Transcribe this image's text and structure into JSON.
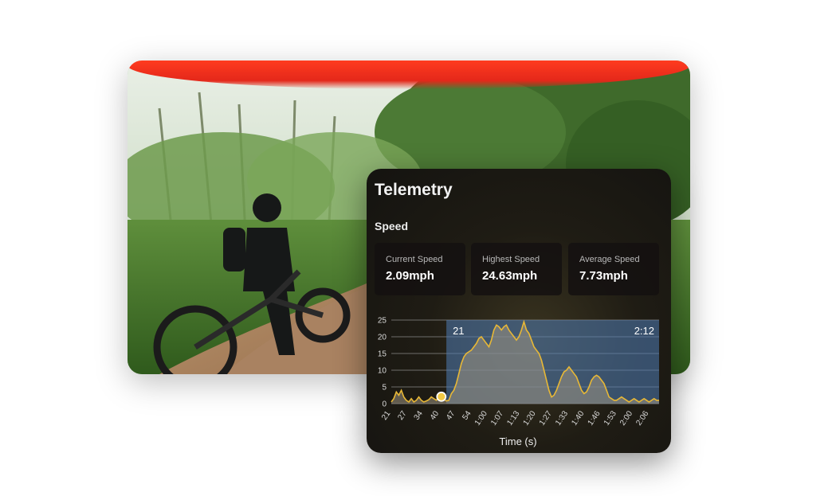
{
  "panel": {
    "title": "Telemetry",
    "section": "Speed",
    "stats": [
      {
        "label": "Current Speed",
        "value": "2.09mph"
      },
      {
        "label": "Highest Speed",
        "value": "24.63mph"
      },
      {
        "label": "Average Speed",
        "value": "7.73mph"
      }
    ]
  },
  "colors": {
    "line": "#e8b836",
    "selection": "#4f7bb5",
    "marker": "#f1c945"
  },
  "chart_data": {
    "type": "area",
    "xlabel": "Time (s)",
    "ylabel": "",
    "x_ticks": [
      "21",
      "27",
      "34",
      "40",
      "47",
      "54",
      "1:00",
      "1:07",
      "1:13",
      "1:20",
      "1:27",
      "1:33",
      "1:40",
      "1:46",
      "1:53",
      "2:00",
      "2:06"
    ],
    "y_ticks": [
      0,
      5,
      10,
      15,
      20,
      25
    ],
    "ylim": [
      0,
      25
    ],
    "xlim": [
      21,
      128
    ],
    "selection": {
      "start_label": "21",
      "end_label": "2:12",
      "x_start": 43,
      "x_end": 128
    },
    "current_marker": {
      "x": 41,
      "y": 2.09
    },
    "series": [
      {
        "x": [
          21,
          22,
          23,
          24,
          25,
          26,
          27,
          28,
          29,
          30,
          31,
          32,
          33,
          34,
          35,
          36,
          37,
          38,
          39,
          40,
          41,
          42,
          43,
          44,
          45,
          46,
          47,
          48,
          49,
          50,
          51,
          52,
          53,
          54,
          55,
          56,
          57,
          58,
          59,
          60,
          61,
          62,
          63,
          64,
          65,
          66,
          67,
          68,
          69,
          70,
          71,
          72,
          73,
          74,
          75,
          76,
          77,
          78,
          79,
          80,
          81,
          82,
          83,
          84,
          85,
          86,
          87,
          88,
          89,
          90,
          91,
          92,
          93,
          94,
          95,
          96,
          97,
          98,
          99,
          100,
          101,
          102,
          103,
          104,
          105,
          106,
          107,
          108,
          109,
          110,
          111,
          112,
          113,
          114,
          115,
          116,
          117,
          118,
          119,
          120,
          121,
          122,
          123,
          124,
          125,
          126,
          127,
          128
        ],
        "values": [
          0.5,
          1.5,
          3.5,
          2.5,
          4,
          2,
          1,
          0.5,
          1.5,
          0.5,
          1,
          2,
          1,
          0.5,
          0.8,
          1.2,
          2,
          1.5,
          1,
          2.2,
          2.1,
          1.5,
          0.8,
          1,
          3,
          4,
          6,
          9,
          12,
          14,
          15,
          15.5,
          16,
          17,
          18,
          19.5,
          20,
          19,
          18,
          17,
          19,
          22,
          23.5,
          23,
          22,
          23,
          23.5,
          22,
          21,
          20,
          19,
          20,
          22,
          24.5,
          22,
          21,
          19,
          17,
          16,
          15,
          13,
          10,
          7,
          4,
          2,
          2.5,
          4,
          6,
          8,
          9.5,
          10,
          11,
          10,
          9,
          8,
          6,
          4,
          3,
          3.5,
          5,
          7,
          8,
          8.5,
          8,
          7,
          6,
          4,
          2,
          1.5,
          1,
          1,
          1.5,
          2,
          1.5,
          1,
          0.5,
          1,
          1.5,
          1,
          0.5,
          1,
          1.5,
          1,
          0.5,
          1,
          1.5,
          1,
          1
        ]
      }
    ]
  }
}
